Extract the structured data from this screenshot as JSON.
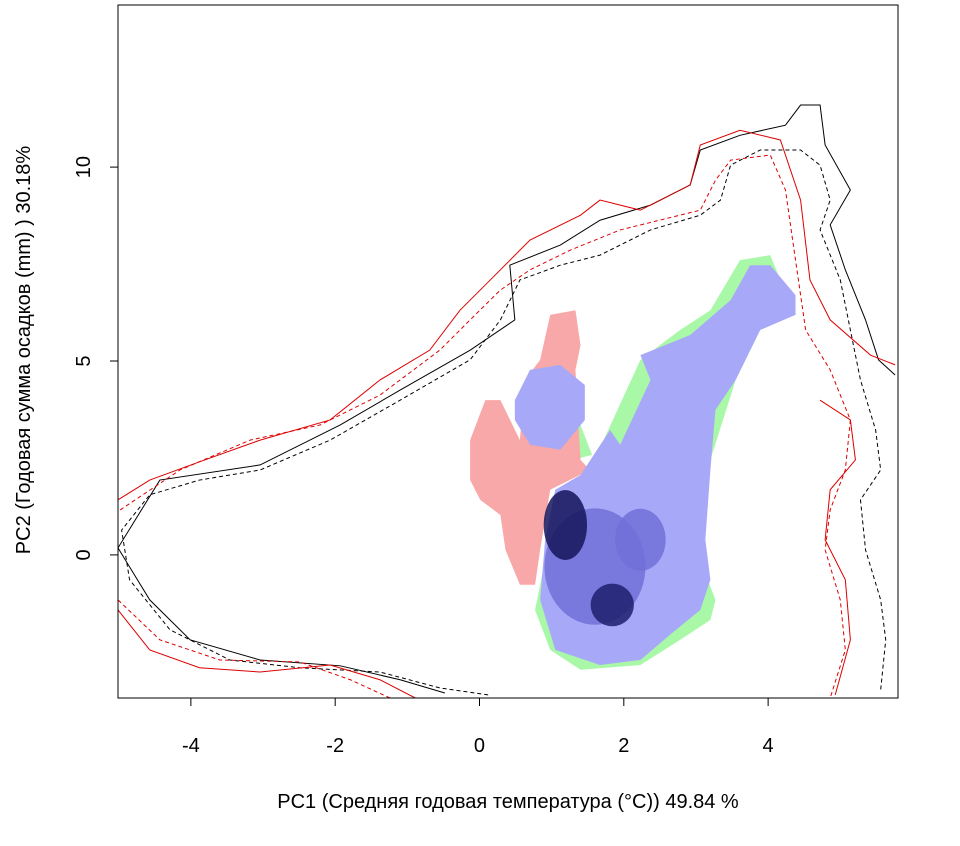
{
  "chart_data": {
    "type": "niche",
    "xlabel": "PC1 (Средняя годовая температура (°C)) 49.84 %",
    "ylabel": "PC2 (Годовая сумма осадков  (mm) ) 30.18%",
    "xlim": [
      -5.01,
      5.8
    ],
    "ylim": [
      -3.69,
      14.18
    ],
    "xticks": [
      -4,
      -2,
      0,
      2,
      4
    ],
    "yticks": [
      0,
      5,
      10
    ],
    "areas": [
      {
        "color": "#a8f8a8",
        "x": [
          1.53,
          2.23,
          2.78,
          3.2,
          3.61,
          4.03,
          4.17,
          3.89,
          3.55,
          3.2,
          3.06,
          3.06,
          3.27,
          3.2,
          2.78,
          2.23,
          1.4,
          0.98,
          0.77,
          0.91,
          1.4
        ],
        "y": [
          2.19,
          5.03,
          5.8,
          6.31,
          7.6,
          7.73,
          7.09,
          5.8,
          4.51,
          2.45,
          1.42,
          -0.13,
          -1.16,
          -1.68,
          -2.19,
          -2.84,
          -2.96,
          -2.45,
          -1.42,
          -0.13,
          1.68
        ]
      },
      {
        "color": "#a8f8a8",
        "x": [
          1.05,
          1.4,
          1.56,
          1.19
        ],
        "y": [
          2.96,
          3.35,
          2.58,
          2.4
        ]
      },
      {
        "color": "#f8a8a8",
        "x": [
          -0.13,
          0.08,
          0.29,
          0.56,
          0.63,
          0.84,
          0.98,
          1.33,
          1.4,
          1.33,
          1.4,
          1.53,
          0.98,
          0.84,
          0.77,
          0.56,
          0.36,
          0.29,
          0.01,
          -0.13
        ],
        "y": [
          2.96,
          3.99,
          3.99,
          2.96,
          4.51,
          5.03,
          6.19,
          6.31,
          5.41,
          4.77,
          2.45,
          2.19,
          1.68,
          0.13,
          -0.77,
          -0.77,
          0.13,
          1.03,
          1.42,
          1.93
        ]
      },
      {
        "color": "#a8a8f8",
        "x": [
          1.4,
          1.81,
          1.95,
          2.37,
          2.23,
          2.92,
          3.48,
          3.75,
          4.03,
          4.38,
          4.38,
          3.89,
          3.55,
          3.27,
          3.2,
          3.13,
          3.2,
          3.06,
          2.64,
          2.23,
          1.67,
          1.05,
          0.84,
          0.91,
          1.05
        ],
        "y": [
          2.06,
          3.22,
          2.84,
          4.51,
          5.15,
          5.67,
          6.57,
          7.47,
          7.47,
          6.7,
          6.19,
          5.8,
          4.51,
          3.74,
          2.19,
          0.39,
          -0.64,
          -1.42,
          -2.06,
          -2.71,
          -2.84,
          -2.45,
          -1.16,
          0.39,
          1.68
        ]
      },
      {
        "color": "#a8a8f8",
        "x": [
          0.49,
          0.7,
          1.12,
          1.46,
          1.46,
          1.12,
          0.7,
          0.49
        ],
        "y": [
          3.99,
          4.77,
          4.9,
          4.38,
          3.48,
          2.71,
          2.84,
          3.48
        ]
      }
    ],
    "blobs": [
      {
        "color": "#7070d8",
        "x": 1.6,
        "y": -0.3,
        "rx": 0.7,
        "ry": 1.5
      },
      {
        "color": "#7070d8",
        "x": 2.23,
        "y": 0.39,
        "rx": 0.35,
        "ry": 0.8
      },
      {
        "color": "#14145a",
        "x": 1.19,
        "y": 0.77,
        "rx": 0.3,
        "ry": 0.9
      },
      {
        "color": "#1e1e6e",
        "x": 1.84,
        "y": -1.29,
        "rx": 0.3,
        "ry": 0.55
      }
    ],
    "series": [
      {
        "color": "#000000",
        "dash": false,
        "x": [
          -0.48,
          -1.1,
          -1.93,
          -3.04,
          -4.01,
          -4.57,
          -5.01,
          -4.43,
          -3.04,
          -1.93,
          -1.1,
          -0.13,
          0.49,
          0.42,
          1.12,
          1.67,
          2.37,
          2.92,
          3.06,
          3.61,
          4.24,
          4.45,
          4.72,
          4.79,
          5.14,
          4.86,
          5.07,
          5.35,
          5.53,
          5.76
        ],
        "y": [
          -3.56,
          -3.22,
          -2.86,
          -2.71,
          -2.19,
          -1.16,
          0.18,
          1.93,
          2.32,
          3.35,
          4.25,
          5.28,
          6.06,
          7.47,
          7.99,
          8.63,
          9.02,
          9.54,
          10.44,
          10.82,
          11.08,
          11.6,
          11.6,
          10.57,
          9.41,
          8.51,
          7.35,
          6.06,
          5.03,
          4.64
        ]
      },
      {
        "color": "#000000",
        "dash": true,
        "x": [
          0.12,
          -0.55,
          -1.38,
          -2.49,
          -3.46,
          -4.29,
          -4.85,
          -4.96,
          -4.57,
          -3.88,
          -3.04,
          -2.07,
          -1.1,
          -0.13,
          0.29,
          0.56,
          1.12,
          1.67,
          2.37,
          3.06,
          3.34,
          3.48,
          3.89,
          4.45,
          4.72,
          4.86,
          4.72,
          5.0,
          5.14,
          5.28,
          5.49,
          5.56,
          5.28,
          5.35,
          5.56,
          5.63,
          5.56
        ],
        "y": [
          -3.61,
          -3.43,
          -3.02,
          -2.91,
          -2.71,
          -1.93,
          -0.64,
          0.64,
          1.55,
          1.93,
          2.19,
          2.96,
          3.99,
          5.03,
          6.06,
          7.09,
          7.47,
          7.73,
          8.38,
          8.76,
          9.15,
          10.05,
          10.44,
          10.44,
          10.05,
          9.15,
          8.38,
          7.09,
          5.8,
          4.51,
          3.22,
          2.19,
          1.42,
          0.13,
          -1.16,
          -2.19,
          -3.48
        ]
      },
      {
        "color": "#dd0000",
        "dash": false,
        "x": [
          -0.89,
          -1.38,
          -2.07,
          -3.04,
          -3.88,
          -4.57,
          -5.01,
          null,
          -5.01,
          -4.57,
          -3.88,
          -3.04,
          -2.07,
          -1.38,
          -0.69,
          -0.27,
          0.15,
          0.7,
          1.4,
          1.67,
          2.23,
          2.92,
          3.06,
          3.61,
          4.17,
          4.45,
          4.58,
          4.86,
          5.42,
          5.76,
          null,
          4.72,
          5.14,
          5.21,
          4.86,
          4.79,
          5.07,
          5.14,
          4.93
        ],
        "y": [
          -3.69,
          -3.22,
          -2.84,
          -3.02,
          -2.91,
          -2.45,
          -1.42,
          null,
          1.42,
          1.93,
          2.4,
          2.96,
          3.48,
          4.51,
          5.28,
          6.31,
          7.09,
          8.12,
          8.76,
          9.15,
          8.89,
          9.54,
          10.57,
          10.95,
          10.7,
          9.15,
          7.09,
          6.06,
          5.15,
          4.9,
          null,
          3.99,
          3.48,
          2.45,
          1.68,
          0.39,
          -0.64,
          -2.19,
          -3.61
        ]
      },
      {
        "color": "#dd0000",
        "dash": true,
        "x": [
          -1.24,
          -1.79,
          -2.49,
          -3.6,
          -4.43,
          -5.01,
          null,
          -4.98,
          -4.15,
          -3.18,
          -2.21,
          -1.38,
          -0.55,
          -0.13,
          0.29,
          0.7,
          1.26,
          1.95,
          3.06,
          3.27,
          3.48,
          4.03,
          4.24,
          4.38,
          4.52,
          4.86,
          5.14,
          5.07,
          4.86,
          4.79,
          5.0,
          5.07,
          4.86
        ],
        "y": [
          -3.69,
          -3.22,
          -2.76,
          -2.71,
          -2.19,
          -1.16,
          null,
          1.16,
          2.19,
          2.96,
          3.35,
          4.12,
          5.28,
          6.06,
          6.83,
          7.35,
          7.86,
          8.38,
          8.89,
          9.66,
          10.18,
          10.31,
          9.41,
          7.6,
          5.8,
          4.77,
          3.48,
          2.19,
          1.16,
          0.13,
          -1.16,
          -2.45,
          -3.69
        ]
      }
    ]
  }
}
